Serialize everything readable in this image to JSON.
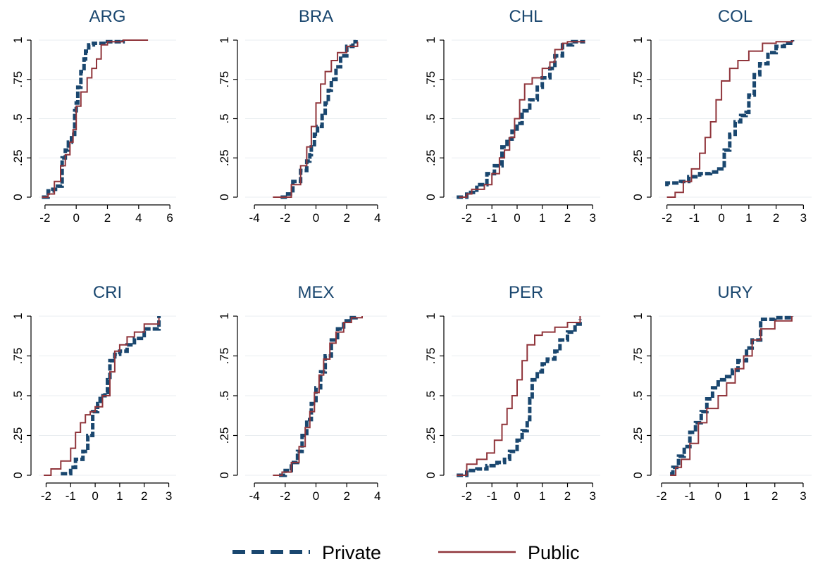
{
  "colors": {
    "private": "#1a476f",
    "public": "#90353b",
    "title": "#1a476f",
    "grid": "#e9edf0"
  },
  "legend": {
    "private_label": "Private",
    "public_label": "Public"
  },
  "chart_data": [
    {
      "type": "line",
      "title": "ARG",
      "xlim": [
        -2.4,
        6.4
      ],
      "ylim": [
        0,
        1
      ],
      "xticks": [
        "-2",
        "0",
        "2",
        "4",
        "6"
      ],
      "yticks": [
        "0",
        ".25",
        ".5",
        ".75",
        "1"
      ],
      "grid": true,
      "series": [
        {
          "name": "Private",
          "x": [
            -2.2,
            -1.8,
            -1.5,
            -1.2,
            -0.9,
            -0.7,
            -0.5,
            -0.3,
            -0.1,
            0.0,
            0.1,
            0.3,
            0.5,
            0.6,
            0.8,
            1.1,
            2.0,
            3.0
          ],
          "y": [
            0,
            0.04,
            0.05,
            0.07,
            0.25,
            0.3,
            0.35,
            0.4,
            0.55,
            0.6,
            0.7,
            0.8,
            0.88,
            0.93,
            0.97,
            0.98,
            0.99,
            1
          ]
        },
        {
          "name": "Public",
          "x": [
            -2.2,
            -1.8,
            -1.4,
            -1.0,
            -0.7,
            -0.4,
            -0.2,
            0.0,
            0.3,
            0.7,
            1.0,
            1.3,
            1.6,
            2.0,
            3.0,
            4.6
          ],
          "y": [
            0,
            0.02,
            0.1,
            0.2,
            0.27,
            0.35,
            0.43,
            0.58,
            0.67,
            0.76,
            0.82,
            0.88,
            0.97,
            0.99,
            1,
            1
          ]
        }
      ]
    },
    {
      "type": "line",
      "title": "BRA",
      "xlim": [
        -4.6,
        4.6
      ],
      "ylim": [
        0,
        1
      ],
      "xticks": [
        "-4",
        "-2",
        "0",
        "2",
        "4"
      ],
      "yticks": [
        "0",
        ".25",
        ".5",
        ".75",
        "1"
      ],
      "grid": true,
      "series": [
        {
          "name": "Private",
          "x": [
            -2.3,
            -2.0,
            -1.5,
            -1.0,
            -0.6,
            -0.4,
            -0.3,
            -0.1,
            0.1,
            0.4,
            0.6,
            0.8,
            1.0,
            1.3,
            1.6,
            2.0,
            2.4,
            2.6
          ],
          "y": [
            0,
            0.02,
            0.1,
            0.17,
            0.23,
            0.27,
            0.32,
            0.4,
            0.45,
            0.52,
            0.6,
            0.68,
            0.75,
            0.83,
            0.9,
            0.96,
            0.99,
            1
          ]
        },
        {
          "name": "Public",
          "x": [
            -2.8,
            -2.2,
            -1.6,
            -1.0,
            -0.6,
            -0.3,
            0.0,
            0.3,
            0.6,
            1.0,
            1.4,
            2.0,
            2.7
          ],
          "y": [
            0,
            0,
            0.08,
            0.2,
            0.32,
            0.45,
            0.6,
            0.72,
            0.8,
            0.87,
            0.92,
            0.96,
            0.99
          ]
        }
      ]
    },
    {
      "type": "line",
      "title": "CHL",
      "xlim": [
        -2.6,
        3.3
      ],
      "ylim": [
        0,
        1
      ],
      "xticks": [
        "-2",
        "-1",
        "0",
        "1",
        "2",
        "3"
      ],
      "yticks": [
        "0",
        ".25",
        ".5",
        ".75",
        "1"
      ],
      "grid": true,
      "series": [
        {
          "name": "Private",
          "x": [
            -2.4,
            -2.0,
            -1.6,
            -1.2,
            -0.9,
            -0.6,
            -0.4,
            -0.2,
            0.0,
            0.2,
            0.5,
            0.8,
            1.0,
            1.3,
            1.5,
            1.8,
            2.2,
            2.7
          ],
          "y": [
            0,
            0.03,
            0.08,
            0.15,
            0.2,
            0.32,
            0.37,
            0.42,
            0.47,
            0.55,
            0.62,
            0.7,
            0.76,
            0.82,
            0.9,
            0.97,
            0.99,
            0.99
          ]
        },
        {
          "name": "Public",
          "x": [
            -2.3,
            -2.0,
            -1.8,
            -1.3,
            -1.0,
            -0.7,
            -0.5,
            -0.3,
            -0.1,
            0.1,
            0.3,
            0.6,
            1.0,
            1.3,
            1.5,
            1.8,
            2.0,
            2.7
          ],
          "y": [
            0,
            0.02,
            0.05,
            0.08,
            0.15,
            0.25,
            0.3,
            0.38,
            0.5,
            0.62,
            0.72,
            0.76,
            0.82,
            0.86,
            0.94,
            0.98,
            0.99,
            0.99
          ]
        }
      ]
    },
    {
      "type": "line",
      "title": "COL",
      "xlim": [
        -2.3,
        3.3
      ],
      "ylim": [
        0,
        1
      ],
      "xticks": [
        "-2",
        "-1",
        "0",
        "1",
        "2",
        "3"
      ],
      "yticks": [
        "0",
        ".25",
        ".5",
        ".75",
        "1"
      ],
      "grid": true,
      "series": [
        {
          "name": "Private",
          "x": [
            -2.0,
            -2.0,
            -1.5,
            -1.2,
            -0.8,
            -0.4,
            -0.1,
            0.1,
            0.3,
            0.5,
            0.7,
            0.9,
            1.0,
            1.2,
            1.4,
            1.7,
            2.0,
            2.3,
            2.6
          ],
          "y": [
            0.07,
            0.09,
            0.1,
            0.13,
            0.15,
            0.16,
            0.18,
            0.3,
            0.4,
            0.48,
            0.52,
            0.54,
            0.65,
            0.78,
            0.85,
            0.92,
            0.96,
            0.98,
            1
          ]
        },
        {
          "name": "Public",
          "x": [
            -2.0,
            -1.7,
            -1.4,
            -1.1,
            -0.8,
            -0.6,
            -0.4,
            -0.2,
            0.0,
            0.3,
            0.6,
            1.0,
            1.5,
            2.0,
            2.6
          ],
          "y": [
            0,
            0.03,
            0.1,
            0.18,
            0.28,
            0.38,
            0.48,
            0.62,
            0.74,
            0.82,
            0.87,
            0.93,
            0.98,
            0.99,
            1
          ]
        }
      ]
    },
    {
      "type": "line",
      "title": "CRI",
      "xlim": [
        -2.3,
        3.3
      ],
      "ylim": [
        0,
        1
      ],
      "xticks": [
        "-2",
        "-1",
        "0",
        "1",
        "2",
        "3"
      ],
      "yticks": [
        "0",
        ".25",
        ".5",
        ".75",
        "1"
      ],
      "grid": true,
      "series": [
        {
          "name": "Private",
          "x": [
            -1.4,
            -1.0,
            -0.8,
            -0.5,
            -0.3,
            -0.1,
            0.1,
            0.2,
            0.4,
            0.5,
            0.6,
            0.8,
            1.0,
            1.3,
            1.6,
            2.0,
            2.6,
            2.6
          ],
          "y": [
            0.01,
            0.05,
            0.1,
            0.15,
            0.25,
            0.4,
            0.45,
            0.5,
            0.52,
            0.6,
            0.72,
            0.76,
            0.78,
            0.82,
            0.86,
            0.92,
            0.93,
            1
          ]
        },
        {
          "name": "Public",
          "x": [
            -2.1,
            -1.8,
            -1.4,
            -1.0,
            -0.8,
            -0.6,
            -0.4,
            -0.2,
            0.0,
            0.3,
            0.6,
            0.8,
            1.0,
            1.3,
            1.6,
            2.0,
            2.6
          ],
          "y": [
            0,
            0.04,
            0.09,
            0.17,
            0.27,
            0.33,
            0.38,
            0.4,
            0.43,
            0.5,
            0.65,
            0.78,
            0.82,
            0.87,
            0.9,
            0.95,
            0.99
          ]
        }
      ]
    },
    {
      "type": "line",
      "title": "MEX",
      "xlim": [
        -4.6,
        4.6
      ],
      "ylim": [
        0,
        1
      ],
      "xticks": [
        "-4",
        "-2",
        "0",
        "2",
        "4"
      ],
      "yticks": [
        "0",
        ".25",
        ".5",
        ".75",
        "1"
      ],
      "grid": true,
      "series": [
        {
          "name": "Private",
          "x": [
            -2.4,
            -2.0,
            -1.6,
            -1.2,
            -0.9,
            -0.6,
            -0.3,
            0.0,
            0.3,
            0.6,
            1.0,
            1.4,
            1.8,
            2.3,
            2.6
          ],
          "y": [
            0,
            0.03,
            0.08,
            0.15,
            0.25,
            0.35,
            0.45,
            0.55,
            0.65,
            0.75,
            0.85,
            0.92,
            0.97,
            0.99,
            1
          ]
        },
        {
          "name": "Public",
          "x": [
            -2.8,
            -2.2,
            -1.6,
            -1.1,
            -0.7,
            -0.4,
            -0.1,
            0.2,
            0.5,
            0.9,
            1.3,
            1.8,
            2.3,
            3.0
          ],
          "y": [
            0,
            0.02,
            0.08,
            0.18,
            0.3,
            0.4,
            0.52,
            0.63,
            0.73,
            0.83,
            0.9,
            0.96,
            0.99,
            1
          ]
        }
      ]
    },
    {
      "type": "line",
      "title": "PER",
      "xlim": [
        -2.6,
        3.3
      ],
      "ylim": [
        0,
        1
      ],
      "xticks": [
        "-2",
        "-1",
        "0",
        "1",
        "2",
        "3"
      ],
      "yticks": [
        "0",
        ".25",
        ".5",
        ".75",
        "1"
      ],
      "grid": true,
      "series": [
        {
          "name": "Private",
          "x": [
            -2.4,
            -2.0,
            -1.6,
            -1.2,
            -0.8,
            -0.5,
            -0.3,
            0.0,
            0.2,
            0.4,
            0.5,
            0.6,
            0.8,
            1.0,
            1.2,
            1.5,
            1.7,
            2.0,
            2.3,
            2.5
          ],
          "y": [
            0,
            0.03,
            0.04,
            0.06,
            0.08,
            0.1,
            0.15,
            0.22,
            0.28,
            0.35,
            0.48,
            0.6,
            0.65,
            0.7,
            0.73,
            0.78,
            0.85,
            0.9,
            0.95,
            0.98
          ]
        },
        {
          "name": "Public",
          "x": [
            -2.4,
            -2.0,
            -1.6,
            -1.2,
            -0.9,
            -0.6,
            -0.4,
            -0.2,
            0.0,
            0.2,
            0.4,
            0.7,
            1.0,
            1.5,
            2.0,
            2.5
          ],
          "y": [
            0,
            0.07,
            0.1,
            0.14,
            0.22,
            0.32,
            0.42,
            0.5,
            0.6,
            0.72,
            0.82,
            0.88,
            0.9,
            0.93,
            0.96,
            1
          ]
        }
      ]
    },
    {
      "type": "line",
      "title": "URY",
      "xlim": [
        -2.1,
        3.3
      ],
      "ylim": [
        0,
        1
      ],
      "xticks": [
        "-2",
        "-1",
        "0",
        "1",
        "2",
        "3"
      ],
      "yticks": [
        "0",
        ".25",
        ".5",
        ".75",
        "1"
      ],
      "grid": true,
      "series": [
        {
          "name": "Private",
          "x": [
            -1.7,
            -1.6,
            -1.4,
            -1.2,
            -1.0,
            -0.8,
            -0.6,
            -0.4,
            -0.2,
            0.0,
            0.3,
            0.5,
            0.7,
            1.0,
            1.2,
            1.5,
            2.0,
            2.6
          ],
          "y": [
            0.01,
            0.05,
            0.12,
            0.18,
            0.27,
            0.33,
            0.4,
            0.48,
            0.55,
            0.6,
            0.62,
            0.66,
            0.72,
            0.8,
            0.85,
            0.98,
            0.99,
            1
          ]
        },
        {
          "name": "Public",
          "x": [
            -1.7,
            -1.5,
            -1.3,
            -1.0,
            -0.7,
            -0.4,
            0.0,
            0.3,
            0.6,
            0.9,
            1.2,
            1.5,
            2.0,
            2.6
          ],
          "y": [
            0,
            0.05,
            0.1,
            0.2,
            0.33,
            0.42,
            0.5,
            0.58,
            0.67,
            0.75,
            0.85,
            0.92,
            0.97,
            1
          ]
        }
      ]
    }
  ]
}
